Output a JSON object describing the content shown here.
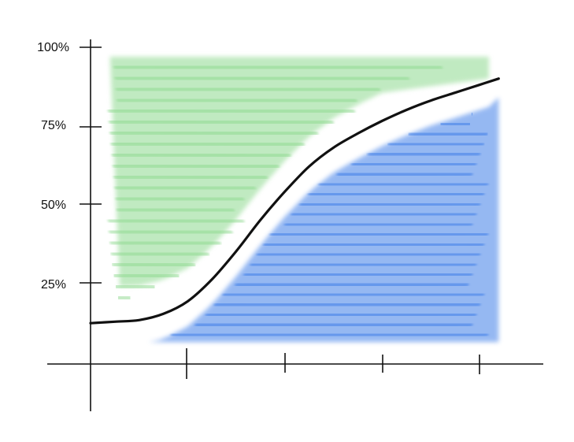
{
  "chart_data": {
    "type": "area",
    "title": "",
    "xlabel": "",
    "ylabel": "",
    "ylim": [
      0,
      100
    ],
    "xlim": [
      0,
      4.2
    ],
    "y_tick_labels": [
      "100%",
      "75%",
      "50%",
      "25%"
    ],
    "y_ticks": [
      100,
      75,
      50,
      25
    ],
    "x_ticks": [
      1,
      2,
      3,
      4
    ],
    "grid": false,
    "legend": "none",
    "curve": {
      "color": "#111111",
      "x": [
        0,
        0.25,
        0.5,
        0.75,
        1.0,
        1.25,
        1.5,
        1.75,
        2.0,
        2.25,
        2.5,
        2.75,
        3.0,
        3.25,
        3.5,
        3.75,
        4.0,
        4.2
      ],
      "y": [
        12,
        12.5,
        13,
        15,
        19,
        26,
        35,
        45,
        54,
        62,
        68,
        72.5,
        76.5,
        80,
        83,
        85.5,
        88,
        90
      ]
    },
    "regions": [
      {
        "label": "above-curve",
        "color": "#8ed98f"
      },
      {
        "label": "below-curve",
        "color": "#3f7fe8"
      }
    ]
  }
}
